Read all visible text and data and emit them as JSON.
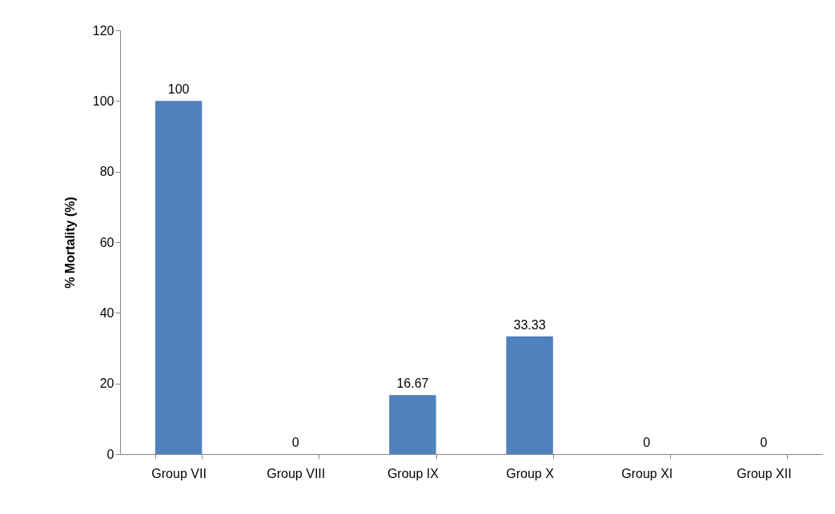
{
  "chart_data": {
    "type": "bar",
    "ylabel": "% Mortality (%)",
    "categories": [
      "Group VII",
      "Group VIII",
      "Group IX",
      "Group X",
      "Group XI",
      "Group XII"
    ],
    "values": [
      100,
      0,
      16.67,
      33.33,
      0,
      0
    ],
    "color": "#4f81bd",
    "ylim": [
      0,
      120
    ],
    "yticks": [
      0,
      20,
      40,
      60,
      80,
      100,
      120
    ],
    "grid": false,
    "data_labels": true
  }
}
